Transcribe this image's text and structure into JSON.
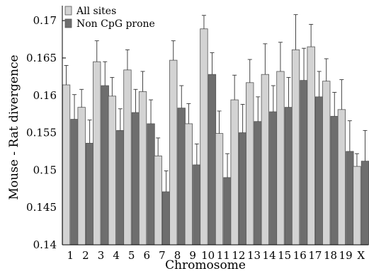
{
  "chart_data": {
    "type": "bar",
    "xlabel": "Chromosome",
    "ylabel": "Mouse - Rat divergence",
    "ylim": [
      0.14,
      0.172
    ],
    "yticks": [
      "0.14",
      "0.145",
      "0.15",
      "0.155",
      "0.16",
      "0.165",
      "0.17"
    ],
    "grid": false,
    "legend_position": "top-left",
    "categories": [
      "1",
      "2",
      "3",
      "4",
      "5",
      "6",
      "7",
      "8",
      "9",
      "10",
      "11",
      "12",
      "13",
      "14",
      "15",
      "16",
      "17",
      "18",
      "19",
      "X"
    ],
    "series": [
      {
        "name": "All sites",
        "color": "#d3d3d3",
        "values": [
          0.1614,
          0.1584,
          0.1645,
          0.1599,
          0.1634,
          0.1605,
          0.1519,
          0.1647,
          0.1562,
          0.1689,
          0.1549,
          0.1594,
          0.1617,
          0.1628,
          0.1632,
          0.1661,
          0.1665,
          0.1619,
          0.1581,
          0.1505
        ],
        "upper_error": [
          0.164,
          0.1608,
          0.1673,
          0.1624,
          0.1661,
          0.1632,
          0.1543,
          0.1673,
          0.1589,
          0.1707,
          0.1579,
          0.1627,
          0.1648,
          0.1669,
          0.1671,
          0.1708,
          0.1695,
          0.1649,
          0.1621,
          0.1522
        ]
      },
      {
        "name": "Non CpG prone",
        "color": "#6e6e6e",
        "values": [
          0.1568,
          0.1536,
          0.1613,
          0.1553,
          0.1577,
          0.1562,
          0.1471,
          0.1583,
          0.1507,
          0.1628,
          0.149,
          0.155,
          0.1565,
          0.1578,
          0.1584,
          0.162,
          0.1598,
          0.1572,
          0.1525,
          0.1512
        ],
        "upper_error": [
          0.1601,
          0.1567,
          0.1645,
          0.1582,
          0.1608,
          0.1594,
          0.1499,
          0.1613,
          0.1535,
          0.1657,
          0.1522,
          0.1588,
          0.1598,
          0.1613,
          0.1624,
          0.1663,
          0.1632,
          0.1604,
          0.1566,
          0.1553
        ]
      }
    ]
  }
}
